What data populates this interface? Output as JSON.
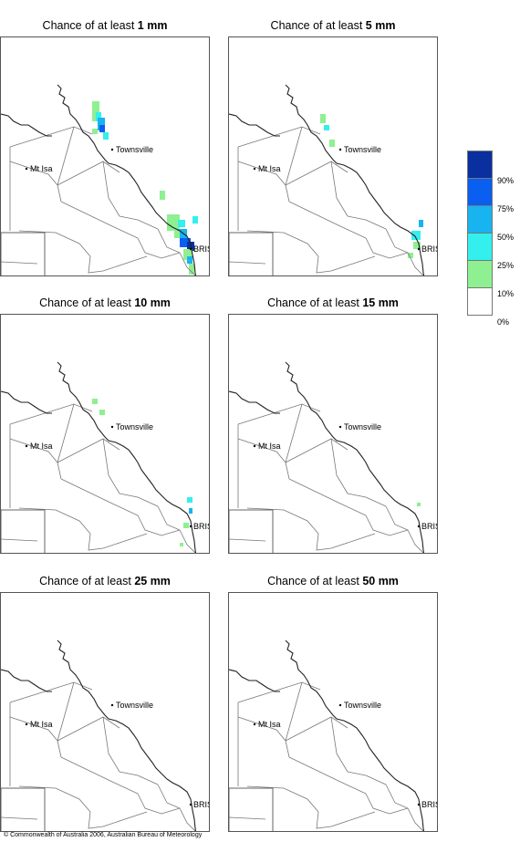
{
  "panels": [
    {
      "prefix": "Chance of at least ",
      "amount": "1 mm"
    },
    {
      "prefix": "Chance of at least ",
      "amount": "5 mm"
    },
    {
      "prefix": "Chance of at least ",
      "amount": "10 mm"
    },
    {
      "prefix": "Chance of at least ",
      "amount": "15 mm"
    },
    {
      "prefix": "Chance of at least ",
      "amount": "25 mm"
    },
    {
      "prefix": "Chance of at least ",
      "amount": "50 mm"
    }
  ],
  "places": {
    "townsville": "Townsville",
    "mt_isa": "Mt Isa",
    "brisbane": "BRIS"
  },
  "legend": {
    "labels": [
      "90%",
      "75%",
      "50%",
      "25%",
      "10%",
      "0%"
    ],
    "colors": [
      "#0a2f9e",
      "#0a5ef0",
      "#18b4f0",
      "#33f0ee",
      "#8ef090",
      "#ffffff"
    ]
  },
  "copyright": "© Commonwealth of Australia 2006, Australian Bureau of Meteorology"
}
